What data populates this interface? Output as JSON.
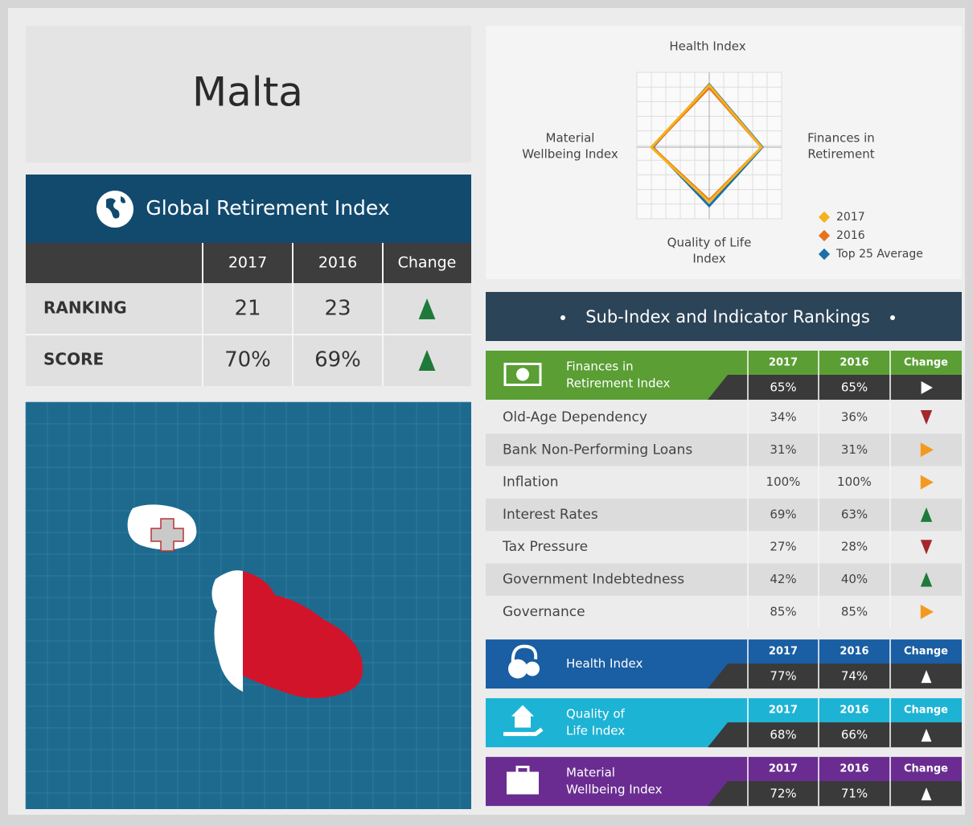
{
  "title": "Malta",
  "gri": {
    "title": "Global Retirement Index",
    "columns": [
      "2017",
      "2016",
      "Change"
    ],
    "rows": [
      {
        "label": "RANKING",
        "values": [
          "21",
          "23"
        ],
        "change": "up"
      },
      {
        "label": "SCORE",
        "values": [
          "70%",
          "69%"
        ],
        "change": "up"
      }
    ]
  },
  "chart_data": {
    "type": "radar",
    "axes": [
      [
        "Health Index"
      ],
      [
        "Finances in",
        "Retirement"
      ],
      [
        "Quality of Life",
        "Index"
      ],
      [
        "Material",
        "Wellbeing Index"
      ]
    ],
    "rlim": [
      0,
      100
    ],
    "series": [
      {
        "name": "2017",
        "color": "#f5b21b",
        "values": [
          77,
          65,
          68,
          72
        ]
      },
      {
        "name": "2016",
        "color": "#e8731f",
        "values": [
          74,
          65,
          66,
          71
        ]
      },
      {
        "name": "Top 25 Average",
        "color": "#1e6eaa",
        "values": [
          78,
          66,
          73,
          70
        ]
      }
    ]
  },
  "subindex": {
    "title": "Sub-Index and Indicator Rankings",
    "columns": [
      "2017",
      "2016",
      "Change"
    ],
    "sections": [
      {
        "name": [
          "Finances in",
          "Retirement Index"
        ],
        "color": "#5a9e34",
        "values": [
          "65%",
          "65%"
        ],
        "change": "same",
        "icon": "money",
        "indicators": [
          {
            "label": "Old-Age Dependency",
            "values": [
              "34%",
              "36%"
            ],
            "change": "down"
          },
          {
            "label": "Bank Non-Performing Loans",
            "values": [
              "31%",
              "31%"
            ],
            "change": "same"
          },
          {
            "label": "Inflation",
            "values": [
              "100%",
              "100%"
            ],
            "change": "same"
          },
          {
            "label": "Interest Rates",
            "values": [
              "69%",
              "63%"
            ],
            "change": "up"
          },
          {
            "label": "Tax Pressure",
            "values": [
              "27%",
              "28%"
            ],
            "change": "down"
          },
          {
            "label": "Government Indebtedness",
            "values": [
              "42%",
              "40%"
            ],
            "change": "up"
          },
          {
            "label": "Governance",
            "values": [
              "85%",
              "85%"
            ],
            "change": "same"
          }
        ]
      },
      {
        "name": [
          "Health Index"
        ],
        "color": "#1a5ea3",
        "values": [
          "77%",
          "74%"
        ],
        "change": "up",
        "icon": "health",
        "indicators": []
      },
      {
        "name": [
          "Quality of",
          "Life Index"
        ],
        "color": "#1db3d4",
        "values": [
          "68%",
          "66%"
        ],
        "change": "up",
        "icon": "home",
        "indicators": []
      },
      {
        "name": [
          "Material",
          "Wellbeing Index"
        ],
        "color": "#6a2c91",
        "values": [
          "72%",
          "71%"
        ],
        "change": "up",
        "icon": "case",
        "indicators": []
      }
    ]
  }
}
